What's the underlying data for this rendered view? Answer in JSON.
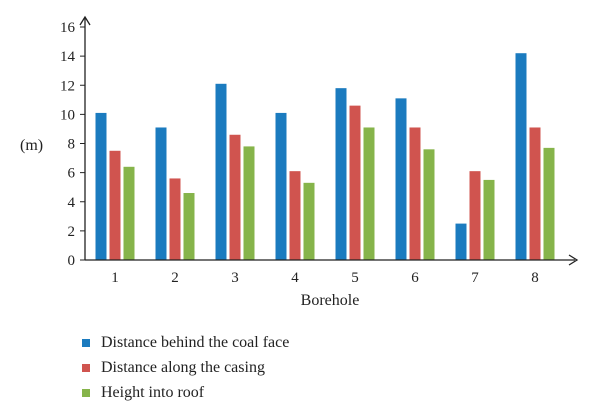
{
  "chart_data": {
    "type": "bar",
    "categories": [
      "1",
      "2",
      "3",
      "4",
      "5",
      "6",
      "7",
      "8"
    ],
    "series": [
      {
        "name": "Distance behind the coal face",
        "color": "#1b7bbf",
        "values": [
          10.1,
          9.1,
          12.1,
          10.1,
          11.8,
          11.1,
          2.5,
          14.2
        ]
      },
      {
        "name": "Distance along the casing",
        "color": "#d0544f",
        "values": [
          7.5,
          5.6,
          8.6,
          6.1,
          10.6,
          9.1,
          6.1,
          9.1
        ]
      },
      {
        "name": "Height into roof",
        "color": "#86b44a",
        "values": [
          6.4,
          4.6,
          7.8,
          5.3,
          9.1,
          7.6,
          5.5,
          7.7
        ]
      }
    ],
    "xlabel": "Borehole",
    "ylabel": "(m)",
    "ylim": [
      0,
      16
    ],
    "yticks": [
      0,
      2,
      4,
      6,
      8,
      10,
      12,
      14,
      16
    ],
    "grid": false,
    "legend": "bottom"
  }
}
